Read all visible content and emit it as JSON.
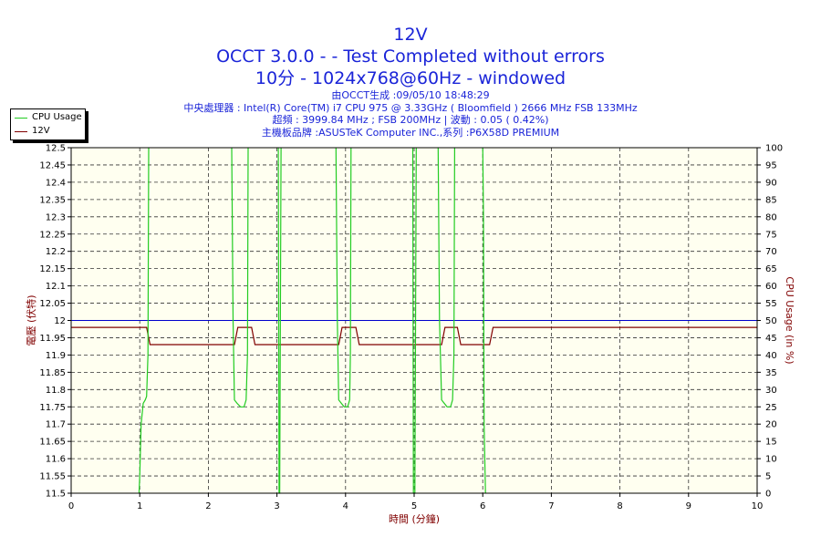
{
  "titles": {
    "line1": "12V",
    "line2": "OCCT 3.0.0 -  - Test Completed without errors",
    "line3": "10分 - 1024x768@60Hz - windowed"
  },
  "info": {
    "line1": "由OCCT生成 :09/05/10 18:48:29",
    "line2": "中央處理器 : Intel(R) Core(TM) i7 CPU 975 @ 3.33GHz ( Bloomfield ) 2666 MHz FSB 133MHz",
    "line3": "超頻 : 3999.84 MHz ; FSB 200MHz | 波動 : 0.05 ( 0.42%)",
    "line4": "主機板品牌 :ASUSTeK Computer INC.,系列 :P6X58D PREMIUM"
  },
  "legend": [
    {
      "label": "CPU Usage",
      "color": "#22cc22"
    },
    {
      "label": "12V",
      "color": "#800000"
    }
  ],
  "chart_data": {
    "type": "line",
    "xlabel": "時間 (分鐘)",
    "ylabel_left": "電壓 (伏特)",
    "ylabel_right": "CPU Usage (in %)",
    "xlim": [
      0,
      10
    ],
    "ylim_left": [
      11.5,
      12.5
    ],
    "ylim_right": [
      0,
      100
    ],
    "x_ticks": [
      "0",
      "1",
      "2",
      "3",
      "4",
      "5",
      "6",
      "7",
      "8",
      "9",
      "10"
    ],
    "y_ticks_left": [
      "11.5",
      "11.55",
      "11.6",
      "11.65",
      "11.7",
      "11.75",
      "11.8",
      "11.85",
      "11.9",
      "11.95",
      "12",
      "12.05",
      "12.1",
      "12.15",
      "12.2",
      "12.25",
      "12.3",
      "12.35",
      "12.4",
      "12.45",
      "12.5"
    ],
    "y_ticks_right": [
      "0",
      "5",
      "10",
      "15",
      "20",
      "25",
      "30",
      "35",
      "40",
      "45",
      "50",
      "55",
      "60",
      "65",
      "70",
      "75",
      "80",
      "85",
      "90",
      "95",
      "100"
    ],
    "grid": true,
    "colors": {
      "axis_label": "#800000",
      "tick": "#000000",
      "grid": "#333333",
      "plot_bg": "#fffff0",
      "reference": "#0000cc",
      "cpu": "#22cc22",
      "volt": "#800000"
    },
    "reference_line": {
      "axis": "left",
      "value": 12.0
    },
    "series": [
      {
        "name": "12V",
        "axis": "left",
        "x": [
          0,
          1.1,
          1.15,
          2.38,
          2.43,
          2.63,
          2.68,
          3.9,
          3.95,
          4.15,
          4.2,
          5.4,
          5.45,
          5.63,
          5.68,
          6.1,
          6.15,
          10
        ],
        "y": [
          11.98,
          11.98,
          11.93,
          11.93,
          11.98,
          11.98,
          11.93,
          11.93,
          11.98,
          11.98,
          11.93,
          11.93,
          11.98,
          11.98,
          11.93,
          11.93,
          11.98,
          11.98
        ]
      },
      {
        "name": "CPU Usage",
        "axis": "right",
        "segments": [
          {
            "x": [
              0.99,
              1.0,
              1.02,
              1.05,
              1.08,
              1.1,
              1.12,
              1.13
            ],
            "y": [
              0,
              5,
              20,
              26,
              27,
              28,
              40,
              100
            ]
          },
          {
            "x": [
              2.34,
              2.36,
              2.38,
              2.42,
              2.47,
              2.52,
              2.55,
              2.57,
              2.58
            ],
            "y": [
              100,
              50,
              27,
              26,
              25,
              25,
              27,
              40,
              100
            ]
          },
          {
            "x": [
              3.02,
              3.03,
              3.04,
              3.06
            ],
            "y": [
              100,
              0,
              0,
              100
            ]
          },
          {
            "x": [
              3.86,
              3.88,
              3.9,
              3.94,
              3.98,
              4.03,
              4.06,
              4.07,
              4.08
            ],
            "y": [
              100,
              50,
              27,
              26,
              25,
              25,
              27,
              40,
              100
            ]
          },
          {
            "x": [
              4.98,
              4.99,
              5.01,
              5.03
            ],
            "y": [
              100,
              0,
              0,
              100
            ]
          },
          {
            "x": [
              5.35,
              5.37,
              5.4,
              5.44,
              5.48,
              5.53,
              5.56,
              5.58,
              5.59
            ],
            "y": [
              100,
              50,
              27,
              26,
              25,
              25,
              27,
              40,
              100
            ]
          },
          {
            "x": [
              6.0,
              6.01,
              6.02,
              6.04
            ],
            "y": [
              100,
              80,
              20,
              0
            ]
          }
        ]
      }
    ]
  }
}
